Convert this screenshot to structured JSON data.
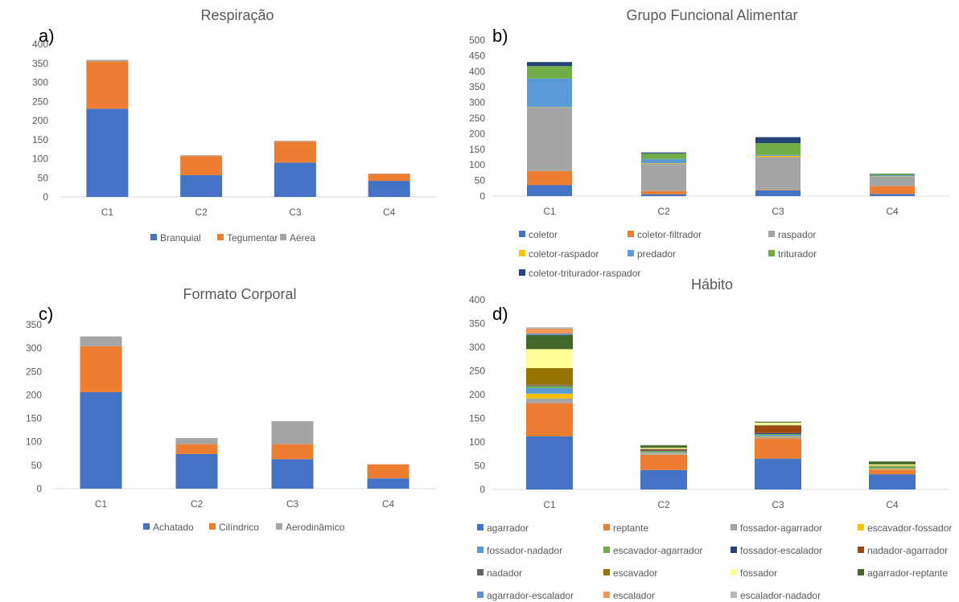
{
  "chart_data": [
    {
      "type": "bar",
      "stacked": true,
      "panel_label": "a)",
      "title": "Respiração",
      "categories": [
        "C1",
        "C2",
        "C3",
        "C4"
      ],
      "ylim": [
        0,
        400
      ],
      "yticks": [
        0,
        50,
        100,
        150,
        200,
        250,
        300,
        350,
        400
      ],
      "grid": false,
      "legend_position": "bottom",
      "series": [
        {
          "name": "Branquial",
          "color": "#4472C4",
          "values": [
            231,
            57,
            90,
            42
          ]
        },
        {
          "name": "Tegumentar",
          "color": "#ED7D31",
          "values": [
            124,
            50,
            55,
            18
          ]
        },
        {
          "name": "Aérea",
          "color": "#A5A5A5",
          "values": [
            4,
            2,
            2,
            1
          ]
        }
      ]
    },
    {
      "type": "bar",
      "stacked": true,
      "panel_label": "b)",
      "title": "Grupo Funcional Alimentar",
      "categories": [
        "C1",
        "C2",
        "C3",
        "C4"
      ],
      "ylim": [
        0,
        500
      ],
      "yticks": [
        0,
        50,
        100,
        150,
        200,
        250,
        300,
        350,
        400,
        450,
        500
      ],
      "grid": false,
      "legend_position": "bottom",
      "series": [
        {
          "name": "coletor",
          "color": "#4472C4",
          "values": [
            35,
            6,
            18,
            7
          ]
        },
        {
          "name": "coletor-filtrador",
          "color": "#ED7D31",
          "values": [
            45,
            10,
            2,
            25
          ]
        },
        {
          "name": "raspador",
          "color": "#A5A5A5",
          "values": [
            204,
            87,
            105,
            31
          ]
        },
        {
          "name": "coletor-raspador",
          "color": "#FFC000",
          "values": [
            1,
            2,
            4,
            1
          ]
        },
        {
          "name": "predador",
          "color": "#5B9BD5",
          "values": [
            92,
            14,
            3,
            3
          ]
        },
        {
          "name": "triturador",
          "color": "#70AD47",
          "values": [
            40,
            18,
            38,
            4
          ]
        },
        {
          "name": "coletor-triturador-raspador",
          "color": "#264478",
          "values": [
            13,
            3,
            19,
            1
          ]
        }
      ]
    },
    {
      "type": "bar",
      "stacked": true,
      "panel_label": "c)",
      "title": "Formato Corporal",
      "categories": [
        "C1",
        "C2",
        "C3",
        "C4"
      ],
      "ylim": [
        0,
        350
      ],
      "yticks": [
        0,
        50,
        100,
        150,
        200,
        250,
        300,
        350
      ],
      "grid": false,
      "legend_position": "bottom",
      "series": [
        {
          "name": "Achatado",
          "color": "#4472C4",
          "values": [
            206,
            74,
            63,
            22
          ]
        },
        {
          "name": "Cilíndrico",
          "color": "#ED7D31",
          "values": [
            98,
            21,
            32,
            30
          ]
        },
        {
          "name": "Aerodinâmico",
          "color": "#A5A5A5",
          "values": [
            21,
            13,
            49,
            0
          ]
        }
      ]
    },
    {
      "type": "bar",
      "stacked": true,
      "panel_label": "d)",
      "title": "Hábito",
      "categories": [
        "C1",
        "C2",
        "C3",
        "C4"
      ],
      "ylim": [
        0,
        400
      ],
      "yticks": [
        0,
        50,
        100,
        150,
        200,
        250,
        300,
        350,
        400
      ],
      "grid": false,
      "legend_position": "bottom",
      "series": [
        {
          "name": "agarrador",
          "color": "#4472C4",
          "values": [
            112,
            41,
            65,
            32
          ]
        },
        {
          "name": "reptante",
          "color": "#ED7D31",
          "values": [
            70,
            32,
            43,
            10
          ]
        },
        {
          "name": "fossador-agarrador",
          "color": "#A5A5A5",
          "values": [
            10,
            3,
            3,
            1
          ]
        },
        {
          "name": "escavador-fossador",
          "color": "#FFC000",
          "values": [
            10,
            1,
            1,
            1
          ]
        },
        {
          "name": "fossador-nadador",
          "color": "#5B9BD5",
          "values": [
            12,
            2,
            3,
            1
          ]
        },
        {
          "name": "escavador-agarrador",
          "color": "#70AD47",
          "values": [
            4,
            2,
            2,
            4
          ]
        },
        {
          "name": "fossador-escalador",
          "color": "#264478",
          "values": [
            1,
            1,
            2,
            0
          ]
        },
        {
          "name": "nadador-agarrador",
          "color": "#9E480E",
          "values": [
            1,
            2,
            15,
            0
          ]
        },
        {
          "name": "nadador",
          "color": "#636363",
          "values": [
            1,
            1,
            1,
            0
          ]
        },
        {
          "name": "escavador",
          "color": "#997300",
          "values": [
            35,
            1,
            1,
            1
          ]
        },
        {
          "name": "fossador",
          "color": "#FFFF99",
          "values": [
            40,
            2,
            5,
            3
          ]
        },
        {
          "name": "agarrador-reptante",
          "color": "#43682B",
          "values": [
            30,
            5,
            2,
            6
          ]
        },
        {
          "name": "agarrador-escalador",
          "color": "#698ED0",
          "values": [
            3,
            0,
            0,
            0
          ]
        },
        {
          "name": "escalador",
          "color": "#F1975A",
          "values": [
            10,
            0,
            0,
            0
          ]
        },
        {
          "name": "escalador-nadador",
          "color": "#B7B7B7",
          "values": [
            3,
            1,
            0,
            0
          ]
        }
      ]
    }
  ]
}
